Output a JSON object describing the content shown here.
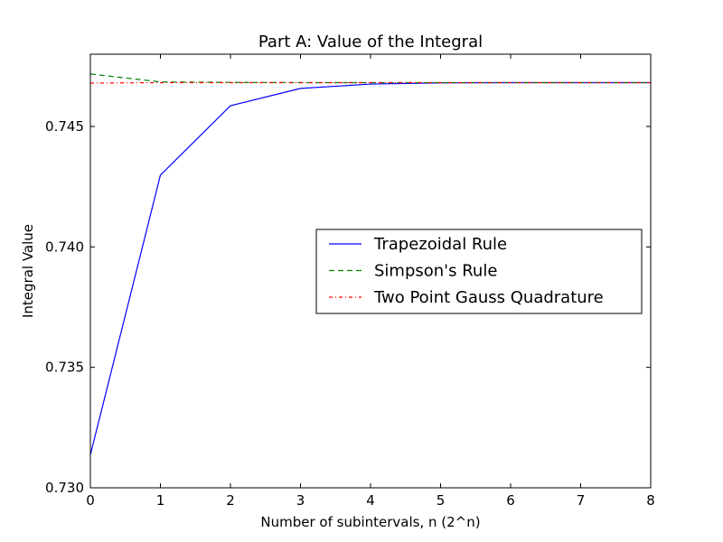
{
  "chart_data": {
    "type": "line",
    "title": "Part A: Value of the Integral",
    "xlabel": "Number of subintervals, n (2^n)",
    "ylabel": "Integral Value",
    "xlim": [
      0,
      8
    ],
    "ylim": [
      0.73,
      0.748
    ],
    "xticks": [
      "0",
      "1",
      "2",
      "3",
      "4",
      "5",
      "6",
      "7",
      "8"
    ],
    "yticks": [
      "0.730",
      "0.735",
      "0.740",
      "0.745"
    ],
    "xtick_values": [
      0,
      1,
      2,
      3,
      4,
      5,
      6,
      7,
      8
    ],
    "ytick_values": [
      0.73,
      0.735,
      0.74,
      0.745
    ],
    "grid": false,
    "legend_position": "center-right",
    "x": [
      0,
      1,
      2,
      3,
      4,
      5,
      6,
      7,
      8
    ],
    "series": [
      {
        "name": "Trapezoidal Rule",
        "values": [
          0.73137,
          0.74298,
          0.74586,
          0.74658,
          0.74676,
          0.74681,
          0.74682,
          0.74682,
          0.74682
        ],
        "color": "#0000ff",
        "style": "solid"
      },
      {
        "name": "Simpson's Rule",
        "values": [
          0.74718,
          0.74685,
          0.74683,
          0.74682,
          0.74682,
          0.74682,
          0.74682,
          0.74682,
          0.74682
        ],
        "color": "#008000",
        "style": "dashed"
      },
      {
        "name": "Two Point Gauss Quadrature",
        "values": [
          0.7468,
          0.74682,
          0.74682,
          0.74682,
          0.74682,
          0.74682,
          0.74682,
          0.74682,
          0.74682
        ],
        "color": "#ff0000",
        "style": "dashdot"
      }
    ]
  }
}
